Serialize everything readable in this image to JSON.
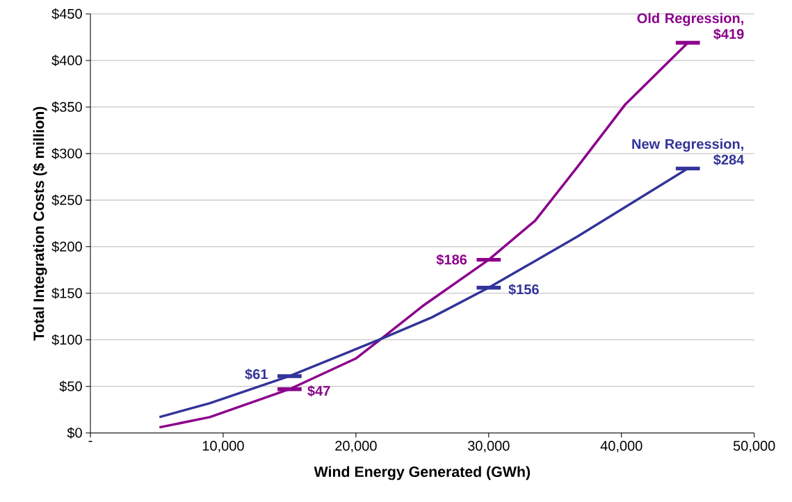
{
  "chart_data": {
    "type": "line",
    "xlabel": "Wind Energy Generated (GWh)",
    "ylabel": "Total Integration Costs ($ million)",
    "series": [
      {
        "color": "#8b008b",
        "x": [
          5200,
          9000,
          15000,
          20000,
          21900,
          25000,
          30000,
          33500,
          36700,
          40300,
          45000
        ],
        "values": [
          6,
          17,
          47,
          80,
          101,
          136,
          186,
          228,
          286,
          353,
          419
        ]
      },
      {
        "color": "#333399",
        "x": [
          5200,
          9000,
          15000,
          21900,
          25700,
          30000,
          36700,
          45000
        ],
        "values": [
          17,
          32,
          61,
          101,
          124,
          156,
          211,
          284
        ]
      }
    ],
    "xlim": [
      0,
      50000
    ],
    "ylim": [
      0,
      450
    ],
    "xticks": [
      {
        "value": 0,
        "label": "-"
      },
      {
        "value": 10000,
        "label": "10,000"
      },
      {
        "value": 20000,
        "label": "20,000"
      },
      {
        "value": 30000,
        "label": "30,000"
      },
      {
        "value": 40000,
        "label": "40,000"
      },
      {
        "value": 50000,
        "label": "50,000"
      }
    ],
    "yticks": [
      {
        "value": 0,
        "label": "$0"
      },
      {
        "value": 50,
        "label": "$50"
      },
      {
        "value": 100,
        "label": "$100"
      },
      {
        "value": 150,
        "label": "$150"
      },
      {
        "value": 200,
        "label": "$200"
      },
      {
        "value": 250,
        "label": "$250"
      },
      {
        "value": 300,
        "label": "$300"
      },
      {
        "value": 350,
        "label": "$350"
      },
      {
        "value": 400,
        "label": "$400"
      },
      {
        "value": 450,
        "label": "$450"
      }
    ],
    "grid": "y",
    "annotations": [
      {
        "text": "Old Regression, $419",
        "x": 45000,
        "y": 419
      },
      {
        "text": "New Regression, $284",
        "x": 45000,
        "y": 284
      },
      {
        "text": "$186",
        "x": 30000,
        "y": 186
      },
      {
        "text": "$156",
        "x": 30000,
        "y": 156
      },
      {
        "text": "$61",
        "x": 15000,
        "y": 61
      },
      {
        "text": "$47",
        "x": 15000,
        "y": 47
      }
    ]
  }
}
